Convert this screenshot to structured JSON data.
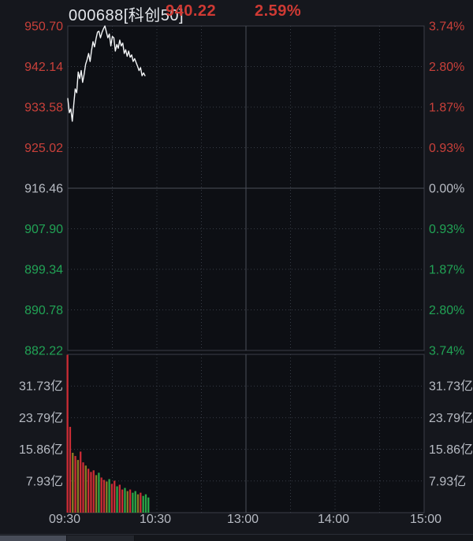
{
  "header": {
    "code_name": "000688[科创50]",
    "last_price": "940.22",
    "change_percent": "2.59%"
  },
  "colors": {
    "up_red_text": "#c9403a",
    "down_green_text": "#21a355",
    "neutral_text": "#b7bbc3",
    "header_red": "#cf3a34",
    "header_name": "#e2e5ea",
    "price_line": "#f4f6f8",
    "bar_red": "#cb2c35",
    "bar_green": "#2aa748",
    "bar_olive": "#8b7d25",
    "plot_bg": "#0d0f14",
    "grid_dotted": "#373c46",
    "grid_solid": "#4a4f59",
    "border": "#3a3e47"
  },
  "chart_data": {
    "type": "line",
    "subtype": "intraday-price-volume",
    "instrument": "000688[科创50]",
    "last_price": 940.22,
    "change_percent": 2.59,
    "prev_close": 916.46,
    "price_axis": {
      "min": 882.22,
      "max": 950.7,
      "ticks": [
        {
          "label": "950.70",
          "color": "red"
        },
        {
          "label": "942.14",
          "color": "red"
        },
        {
          "label": "933.58",
          "color": "red"
        },
        {
          "label": "925.02",
          "color": "red"
        },
        {
          "label": "916.46",
          "color": "neutral"
        },
        {
          "label": "907.90",
          "color": "green"
        },
        {
          "label": "899.34",
          "color": "green"
        },
        {
          "label": "890.78",
          "color": "green"
        },
        {
          "label": "882.22",
          "color": "green"
        }
      ]
    },
    "percent_axis": {
      "ticks": [
        {
          "label": "3.74%",
          "color": "red"
        },
        {
          "label": "2.80%",
          "color": "red"
        },
        {
          "label": "1.87%",
          "color": "red"
        },
        {
          "label": "0.93%",
          "color": "red"
        },
        {
          "label": "0.00%",
          "color": "neutral"
        },
        {
          "label": "0.93%",
          "color": "green"
        },
        {
          "label": "1.87%",
          "color": "green"
        },
        {
          "label": "2.80%",
          "color": "green"
        },
        {
          "label": "3.74%",
          "color": "green"
        }
      ]
    },
    "volume_axis": {
      "unit": "亿",
      "max": 39.66,
      "ticks": [
        "31.73亿",
        "23.79亿",
        "15.86亿",
        "7.93亿"
      ]
    },
    "time_axis": {
      "ticks": [
        "09:30",
        "10:30",
        "13:00",
        "14:00",
        "15:00"
      ],
      "session_minutes": 240
    },
    "price_series": [
      935.4,
      932.4,
      933.2,
      930.6,
      934.0,
      937.4,
      936.6,
      941.0,
      939.6,
      941.3,
      938.8,
      940.5,
      942.6,
      943.6,
      944.9,
      943.2,
      945.5,
      947.4,
      946.3,
      948.0,
      949.4,
      949.6,
      948.2,
      949.3,
      950.1,
      950.7,
      949.4,
      948.2,
      949.0,
      946.5,
      948.5,
      948.2,
      945.4,
      946.8,
      946.0,
      947.7,
      946.5,
      947.1,
      944.9,
      945.7,
      944.3,
      945.4,
      944.1,
      944.6,
      943.2,
      943.8,
      943.0,
      942.2,
      941.3,
      941.9,
      940.2,
      940.8,
      940.22
    ],
    "volume_series": {
      "values": [
        40.3,
        21.5,
        15.0,
        14.2,
        13.2,
        15.3,
        12.6,
        11.8,
        11.0,
        10.2,
        10.6,
        9.4,
        10.0,
        8.8,
        8.2,
        7.8,
        8.4,
        7.2,
        8.0,
        6.6,
        7.0,
        5.8,
        6.2,
        5.4,
        5.8,
        5.0,
        5.4,
        4.6,
        5.0,
        4.2,
        4.6,
        3.8
      ],
      "colors": [
        "red",
        "red",
        "olive",
        "red",
        "olive",
        "red",
        "red",
        "olive",
        "red",
        "red",
        "red",
        "olive",
        "green",
        "red",
        "red",
        "olive",
        "green",
        "red",
        "red",
        "green",
        "red",
        "red",
        "green",
        "olive",
        "red",
        "green",
        "green",
        "olive",
        "red",
        "green",
        "green",
        "green"
      ]
    }
  }
}
